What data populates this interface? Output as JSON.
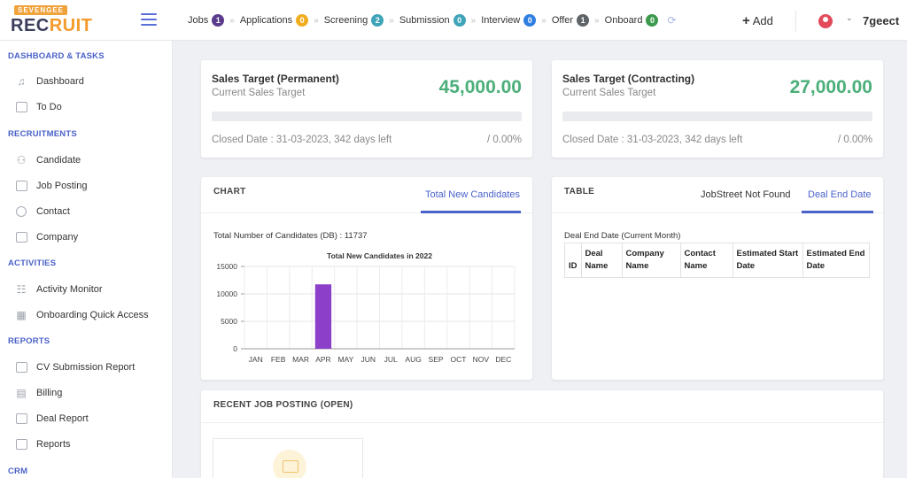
{
  "logo": {
    "top": "SEVENGEE",
    "main_a": "REC",
    "main_b": "RUIT"
  },
  "pipeline": [
    {
      "label": "Jobs",
      "count": "1",
      "color": "#5b3b8c"
    },
    {
      "label": "Applications",
      "count": "0",
      "color": "#f0ad1f"
    },
    {
      "label": "Screening",
      "count": "2",
      "color": "#3fa4b8"
    },
    {
      "label": "Submission",
      "count": "0",
      "color": "#3fa4b8"
    },
    {
      "label": "Interview",
      "count": "0",
      "color": "#2f7fe0"
    },
    {
      "label": "Offer",
      "count": "1",
      "color": "#5f6469"
    },
    {
      "label": "Onboard",
      "count": "0",
      "color": "#3b9a4e"
    }
  ],
  "header": {
    "add_label": "Add",
    "user_name": "7geect"
  },
  "sidebar": {
    "sections": [
      {
        "title": "DASHBOARD & TASKS",
        "items": [
          {
            "label": "Dashboard",
            "icon": "bell-icon"
          },
          {
            "label": "To Do",
            "icon": "clipboard-icon"
          }
        ]
      },
      {
        "title": "RECRUITMENTS",
        "items": [
          {
            "label": "Candidate",
            "icon": "users-icon"
          },
          {
            "label": "Job Posting",
            "icon": "window-icon"
          },
          {
            "label": "Contact",
            "icon": "contact-icon"
          },
          {
            "label": "Company",
            "icon": "briefcase-icon"
          }
        ]
      },
      {
        "title": "ACTIVITIES",
        "items": [
          {
            "label": "Activity Monitor",
            "icon": "sitemap-icon"
          },
          {
            "label": "Onboarding Quick Access",
            "icon": "cubes-icon"
          }
        ]
      },
      {
        "title": "REPORTS",
        "items": [
          {
            "label": "CV Submission Report",
            "icon": "report-icon"
          },
          {
            "label": "Billing",
            "icon": "billing-icon"
          },
          {
            "label": "Deal Report",
            "icon": "deal-icon"
          },
          {
            "label": "Reports",
            "icon": "reports-icon"
          }
        ]
      },
      {
        "title": "CRM",
        "items": []
      }
    ]
  },
  "sales_targets": [
    {
      "title": "Sales Target (Permanent)",
      "subtitle": "Current Sales Target",
      "amount": "45,000.00",
      "progress": 0,
      "closed": "Closed Date : 31-03-2023, 342 days left",
      "percent": "/ 0.00%"
    },
    {
      "title": "Sales Target (Contracting)",
      "subtitle": "Current Sales Target",
      "amount": "27,000.00",
      "progress": 0,
      "closed": "Closed Date : 31-03-2023, 342 days left",
      "percent": "/ 0.00%"
    }
  ],
  "chart_card": {
    "title": "CHART",
    "tab": "Total New Candidates",
    "caption": "Total Number of Candidates (DB) : 11737"
  },
  "chart_data": {
    "type": "bar",
    "title": "Total New Candidates in 2022",
    "categories": [
      "JAN",
      "FEB",
      "MAR",
      "APR",
      "MAY",
      "JUN",
      "JUL",
      "AUG",
      "SEP",
      "OCT",
      "NOV",
      "DEC"
    ],
    "values": [
      0,
      0,
      0,
      11737,
      0,
      0,
      0,
      0,
      0,
      0,
      0,
      0
    ],
    "ylim": [
      0,
      15000
    ],
    "yticks": [
      0,
      5000,
      10000,
      15000
    ],
    "bar_color": "#8c3fc8",
    "grid": true
  },
  "table_card": {
    "title": "TABLE",
    "tabs": [
      "JobStreet Not Found",
      "Deal End Date"
    ],
    "active_tab": 1,
    "caption": "Deal End Date (Current Month)",
    "columns": [
      "ID",
      "Deal Name",
      "Company Name",
      "Contact Name",
      "Estimated Start Date",
      "Estimated End Date"
    ]
  },
  "recent": {
    "title": "RECENT JOB POSTING (OPEN)"
  }
}
